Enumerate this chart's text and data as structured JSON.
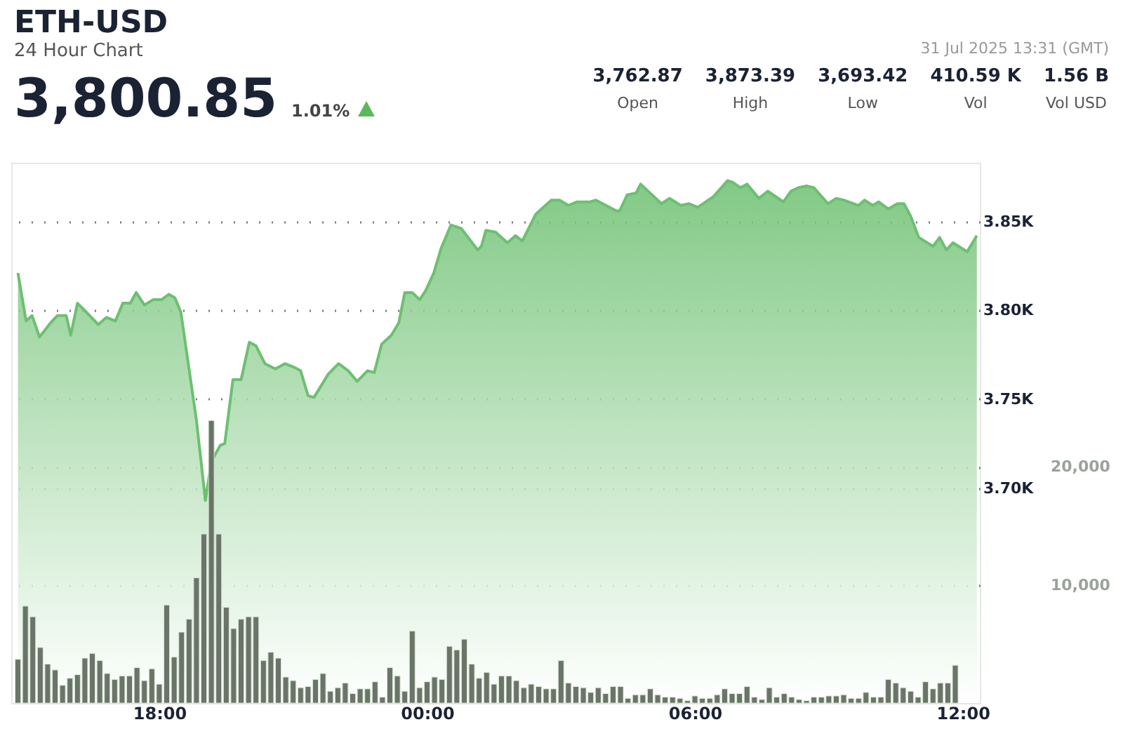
{
  "chart_data": {
    "type": "area",
    "title": "ETH-USD",
    "subtitle": "24 Hour Chart",
    "annotations": [
      "3,800.85",
      "1.01%",
      "3,762.87",
      "Open",
      "3,873.39",
      "High",
      "3,693.42",
      "Low",
      "410.59 K",
      "Vol",
      "1.56 B",
      "Vol USD",
      "31 Jul 2025 13:31 (GMT)"
    ],
    "xlim": [
      "2025-07-30T14:41",
      "2025-07-31T12:23"
    ],
    "xticks": [
      {
        "value": "2025-07-30T18:00",
        "label": "18:00"
      },
      {
        "value": "2025-07-31T00:00",
        "label": "00:00"
      },
      {
        "value": "2025-07-31T06:00",
        "label": "06:00"
      },
      {
        "value": "2025-07-31T12:00",
        "label": "12:00"
      }
    ],
    "ylim": [
      3579,
      3883
    ],
    "yticks": [
      {
        "value": 3700,
        "label": "3.70K"
      },
      {
        "value": 3750,
        "label": "3.75K"
      },
      {
        "value": 3800,
        "label": "3.80K"
      },
      {
        "value": 3850,
        "label": "3.85K"
      }
    ],
    "y2lim": [
      0,
      45700
    ],
    "y2ticks": [
      {
        "value": 10000,
        "label": "10,000"
      },
      {
        "value": 20000,
        "label": "20,000"
      }
    ],
    "grid": "y",
    "line_style": "solid",
    "marker": "none",
    "series": [
      {
        "color": "#6cc070",
        "x": [
          "2025-07-30T14:50",
          "2025-07-30T15:01",
          "2025-07-30T15:09",
          "2025-07-30T15:19",
          "2025-07-30T15:34",
          "2025-07-30T15:43",
          "2025-07-30T15:55",
          "2025-07-30T16:01",
          "2025-07-30T16:10",
          "2025-07-30T16:22",
          "2025-07-30T16:38",
          "2025-07-30T16:49",
          "2025-07-30T17:01",
          "2025-07-30T17:11",
          "2025-07-30T17:21",
          "2025-07-30T17:29",
          "2025-07-30T17:40",
          "2025-07-30T17:52",
          "2025-07-30T18:03",
          "2025-07-30T18:13",
          "2025-07-30T18:21",
          "2025-07-30T18:29",
          "2025-07-30T18:50",
          "2025-07-30T19:02",
          "2025-07-30T19:10",
          "2025-07-30T19:22",
          "2025-07-30T19:28",
          "2025-07-30T19:39",
          "2025-07-30T19:50",
          "2025-07-30T20:01",
          "2025-07-30T20:10",
          "2025-07-30T20:22",
          "2025-07-30T20:36",
          "2025-07-30T20:49",
          "2025-07-30T21:01",
          "2025-07-30T21:10",
          "2025-07-30T21:20",
          "2025-07-30T21:28",
          "2025-07-30T21:47",
          "2025-07-30T22:01",
          "2025-07-30T22:14",
          "2025-07-30T22:26",
          "2025-07-30T22:40",
          "2025-07-30T22:49",
          "2025-07-30T22:59",
          "2025-07-30T23:12",
          "2025-07-30T23:22",
          "2025-07-30T23:30",
          "2025-07-30T23:40",
          "2025-07-30T23:50",
          "2025-07-30T23:58",
          "2025-07-31T00:09",
          "2025-07-31T00:19",
          "2025-07-31T00:32",
          "2025-07-31T00:46",
          "2025-07-31T01:08",
          "2025-07-31T01:13",
          "2025-07-31T01:19",
          "2025-07-31T01:32",
          "2025-07-31T01:48",
          "2025-07-31T01:59",
          "2025-07-31T02:08",
          "2025-07-31T02:26",
          "2025-07-31T02:47",
          "2025-07-31T02:58",
          "2025-07-31T03:10",
          "2025-07-31T03:21",
          "2025-07-31T03:39",
          "2025-07-31T03:47",
          "2025-07-31T04:14",
          "2025-07-31T04:19",
          "2025-07-31T04:29",
          "2025-07-31T04:41",
          "2025-07-31T04:47",
          "2025-07-31T05:15",
          "2025-07-31T05:26",
          "2025-07-31T05:41",
          "2025-07-31T05:52",
          "2025-07-31T06:04",
          "2025-07-31T06:25",
          "2025-07-31T06:44",
          "2025-07-31T06:51",
          "2025-07-31T07:01",
          "2025-07-31T07:10",
          "2025-07-31T07:26",
          "2025-07-31T07:38",
          "2025-07-31T07:59",
          "2025-07-31T08:09",
          "2025-07-31T08:19",
          "2025-07-31T08:30",
          "2025-07-31T08:40",
          "2025-07-31T08:59",
          "2025-07-31T09:10",
          "2025-07-31T09:20",
          "2025-07-31T09:40",
          "2025-07-31T09:48",
          "2025-07-31T09:59",
          "2025-07-31T10:07",
          "2025-07-31T10:20",
          "2025-07-31T10:32",
          "2025-07-31T10:41",
          "2025-07-31T10:50",
          "2025-07-31T11:01",
          "2025-07-31T11:20",
          "2025-07-31T11:29",
          "2025-07-31T11:38",
          "2025-07-31T11:47",
          "2025-07-31T12:06",
          "2025-07-31T12:19"
        ],
        "values": [
          3821,
          3794,
          3797,
          3785,
          3793,
          3797,
          3797,
          3786,
          3804,
          3799,
          3792,
          3796,
          3794,
          3804,
          3804,
          3810,
          3803,
          3806,
          3806,
          3809,
          3807,
          3799,
          3738,
          3693,
          3715,
          3724,
          3725,
          3761,
          3761,
          3782,
          3780,
          3770,
          3767,
          3770,
          3768,
          3766,
          3752,
          3751,
          3764,
          3770,
          3766,
          3760,
          3766,
          3765,
          3781,
          3786,
          3793,
          3810,
          3810,
          3806,
          3811,
          3821,
          3835,
          3848,
          3846,
          3834,
          3836,
          3845,
          3844,
          3838,
          3842,
          3839,
          3854,
          3862,
          3862,
          3859,
          3861,
          3861,
          3862,
          3856,
          3856,
          3865,
          3866,
          3871,
          3860,
          3863,
          3859,
          3860,
          3858,
          3864,
          3873,
          3872,
          3869,
          3871,
          3863,
          3867,
          3861,
          3867,
          3869,
          3870,
          3869,
          3860,
          3863,
          3862,
          3859,
          3862,
          3859,
          3861,
          3857,
          3860,
          3860,
          3853,
          3841,
          3836,
          3841,
          3834,
          3838,
          3833,
          3842
        ]
      },
      {
        "type": "bar",
        "axis": "y2",
        "color": "#6b7468",
        "x": [
          "2025-07-30T14:50",
          "2025-07-30T15:00",
          "2025-07-30T15:10",
          "2025-07-30T15:20",
          "2025-07-30T15:30",
          "2025-07-30T15:40",
          "2025-07-30T15:50",
          "2025-07-30T16:00",
          "2025-07-30T16:10",
          "2025-07-30T16:20",
          "2025-07-30T16:30",
          "2025-07-30T16:40",
          "2025-07-30T16:50",
          "2025-07-30T17:00",
          "2025-07-30T17:10",
          "2025-07-30T17:20",
          "2025-07-30T17:30",
          "2025-07-30T17:40",
          "2025-07-30T17:50",
          "2025-07-30T18:00",
          "2025-07-30T18:10",
          "2025-07-30T18:20",
          "2025-07-30T18:30",
          "2025-07-30T18:40",
          "2025-07-30T18:50",
          "2025-07-30T19:00",
          "2025-07-30T19:10",
          "2025-07-30T19:20",
          "2025-07-30T19:30",
          "2025-07-30T19:40",
          "2025-07-30T19:50",
          "2025-07-30T20:00",
          "2025-07-30T20:10",
          "2025-07-30T20:20",
          "2025-07-30T20:30",
          "2025-07-30T20:40",
          "2025-07-30T20:50",
          "2025-07-30T21:00",
          "2025-07-30T21:10",
          "2025-07-30T21:20",
          "2025-07-30T21:30",
          "2025-07-30T21:40",
          "2025-07-30T21:50",
          "2025-07-30T22:00",
          "2025-07-30T22:10",
          "2025-07-30T22:20",
          "2025-07-30T22:30",
          "2025-07-30T22:40",
          "2025-07-30T22:50",
          "2025-07-30T23:00",
          "2025-07-30T23:10",
          "2025-07-30T23:20",
          "2025-07-30T23:30",
          "2025-07-30T23:40",
          "2025-07-30T23:50",
          "2025-07-31T00:00",
          "2025-07-31T00:10",
          "2025-07-31T00:20",
          "2025-07-31T00:30",
          "2025-07-31T00:40",
          "2025-07-31T00:50",
          "2025-07-31T01:00",
          "2025-07-31T01:10",
          "2025-07-31T01:20",
          "2025-07-31T01:30",
          "2025-07-31T01:40",
          "2025-07-31T01:50",
          "2025-07-31T02:00",
          "2025-07-31T02:10",
          "2025-07-31T02:20",
          "2025-07-31T02:30",
          "2025-07-31T02:40",
          "2025-07-31T02:50",
          "2025-07-31T03:00",
          "2025-07-31T03:10",
          "2025-07-31T03:20",
          "2025-07-31T03:30",
          "2025-07-31T03:40",
          "2025-07-31T03:50",
          "2025-07-31T04:00",
          "2025-07-31T04:10",
          "2025-07-31T04:20",
          "2025-07-31T04:30",
          "2025-07-31T04:40",
          "2025-07-31T04:50",
          "2025-07-31T05:00",
          "2025-07-31T05:10",
          "2025-07-31T05:20",
          "2025-07-31T05:30",
          "2025-07-31T05:40",
          "2025-07-31T05:50",
          "2025-07-31T06:00",
          "2025-07-31T06:10",
          "2025-07-31T06:20",
          "2025-07-31T06:30",
          "2025-07-31T06:40",
          "2025-07-31T06:50",
          "2025-07-31T07:00",
          "2025-07-31T07:10",
          "2025-07-31T07:20",
          "2025-07-31T07:30",
          "2025-07-31T07:40",
          "2025-07-31T07:50",
          "2025-07-31T08:00",
          "2025-07-31T08:10",
          "2025-07-31T08:20",
          "2025-07-31T08:30",
          "2025-07-31T08:40",
          "2025-07-31T08:50",
          "2025-07-31T09:00",
          "2025-07-31T09:10",
          "2025-07-31T09:20",
          "2025-07-31T09:30",
          "2025-07-31T09:40",
          "2025-07-31T09:50",
          "2025-07-31T10:00",
          "2025-07-31T10:10",
          "2025-07-31T10:20",
          "2025-07-31T10:30",
          "2025-07-31T10:40",
          "2025-07-31T10:50",
          "2025-07-31T11:00",
          "2025-07-31T11:10",
          "2025-07-31T11:20",
          "2025-07-31T11:30",
          "2025-07-31T11:40",
          "2025-07-31T11:50"
        ],
        "values": [
          3700,
          8200,
          7300,
          4700,
          3300,
          2800,
          1500,
          2100,
          2400,
          3800,
          4200,
          3600,
          2500,
          2000,
          2300,
          2300,
          3000,
          1900,
          2900,
          1600,
          8300,
          3900,
          6000,
          7100,
          10600,
          14300,
          23900,
          14300,
          8100,
          6300,
          7100,
          7300,
          7300,
          3600,
          4300,
          3800,
          2200,
          1900,
          1300,
          1400,
          2000,
          2500,
          1000,
          1300,
          1700,
          800,
          1200,
          1200,
          1800,
          500,
          3000,
          2300,
          1000,
          6100,
          1300,
          1800,
          2200,
          2000,
          4800,
          4500,
          5400,
          3300,
          2100,
          2600,
          1600,
          2300,
          2300,
          1900,
          1300,
          1600,
          1400,
          1200,
          1200,
          3600,
          1700,
          1400,
          1300,
          900,
          1300,
          800,
          1400,
          1400,
          400,
          700,
          700,
          1200,
          700,
          500,
          500,
          400,
          200,
          600,
          400,
          400,
          700,
          1200,
          800,
          800,
          1400,
          500,
          300,
          1300,
          500,
          800,
          500,
          300,
          200,
          500,
          500,
          600,
          600,
          700,
          400,
          400,
          900,
          500,
          500,
          2000,
          1700,
          1300,
          1000,
          500,
          1800,
          1200,
          1700,
          1700,
          3200
        ]
      }
    ]
  }
}
